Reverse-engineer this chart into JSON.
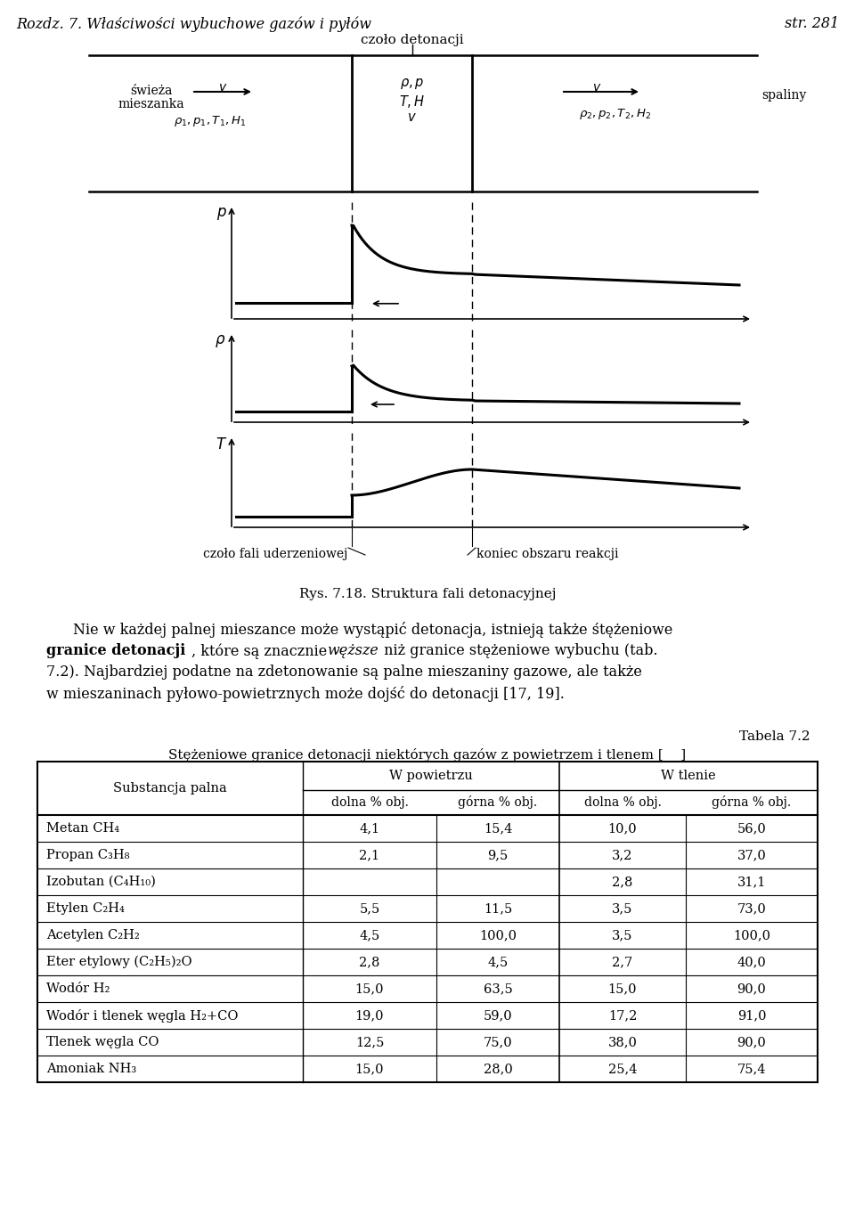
{
  "header_left": "Rozdz. 7. Właściwości wybuchowe gazów i pyłów",
  "header_right": "str. 281",
  "czolo_label": "czoło detonacji",
  "swieza_line1": "świeża",
  "swieza_line2": "mieszanka",
  "swieza_params": "$\\rho_1, p_1, T_1, H_1$",
  "middle_params_line1": "$\\rho, p$",
  "middle_params_line2": "$T, H$",
  "middle_params_line3": "$v$",
  "spaliny_label": "spaliny",
  "spaliny_params": "$\\rho_2, p_2, T_2, H_2$",
  "v_label": "$v$",
  "figure_caption": "Rys. 7.18. Struktura fali detonacyjnej",
  "czolo_fali_label": "czoło fali uderzeniowej",
  "koniec_label": "koniec obszaru reakcji",
  "tabela_label": "Tabela 7.2",
  "table_caption": "Stężeniowe granice detonacji niektórych gazów z powietrzem i tlenem [    ]",
  "col_header_substance": "Substancja palna",
  "col_header_air": "W powietrzu",
  "col_header_oxygen": "W tlenie",
  "col_subheader_dolna": "dolna % obj.",
  "col_subheader_gorna": "górna % obj.",
  "table_rows": [
    [
      "Metan CH₄",
      "4,1",
      "15,4",
      "10,0",
      "56,0"
    ],
    [
      "Propan C₃H₈",
      "2,1",
      "9,5",
      "3,2",
      "37,0"
    ],
    [
      "Izobutan (C₄H₁₀)",
      "",
      "",
      "2,8",
      "31,1"
    ],
    [
      "Etylen C₂H₄",
      "5,5",
      "11,5",
      "3,5",
      "73,0"
    ],
    [
      "Acetylen C₂H₂",
      "4,5",
      "100,0",
      "3,5",
      "100,0"
    ],
    [
      "Eter etylowy (C₂H₅)₂O",
      "2,8",
      "4,5",
      "2,7",
      "40,0"
    ],
    [
      "Wodór H₂",
      "15,0",
      "63,5",
      "15,0",
      "90,0"
    ],
    [
      "Wodór i tlenek węgla H₂+CO",
      "19,0",
      "59,0",
      "17,2",
      "91,0"
    ],
    [
      "Tlenek węgla CO",
      "12,5",
      "75,0",
      "38,0",
      "90,0"
    ],
    [
      "Amoniak NH₃",
      "15,0",
      "28,0",
      "25,4",
      "75,4"
    ]
  ],
  "bg_color": "#ffffff",
  "text_color": "#000000"
}
